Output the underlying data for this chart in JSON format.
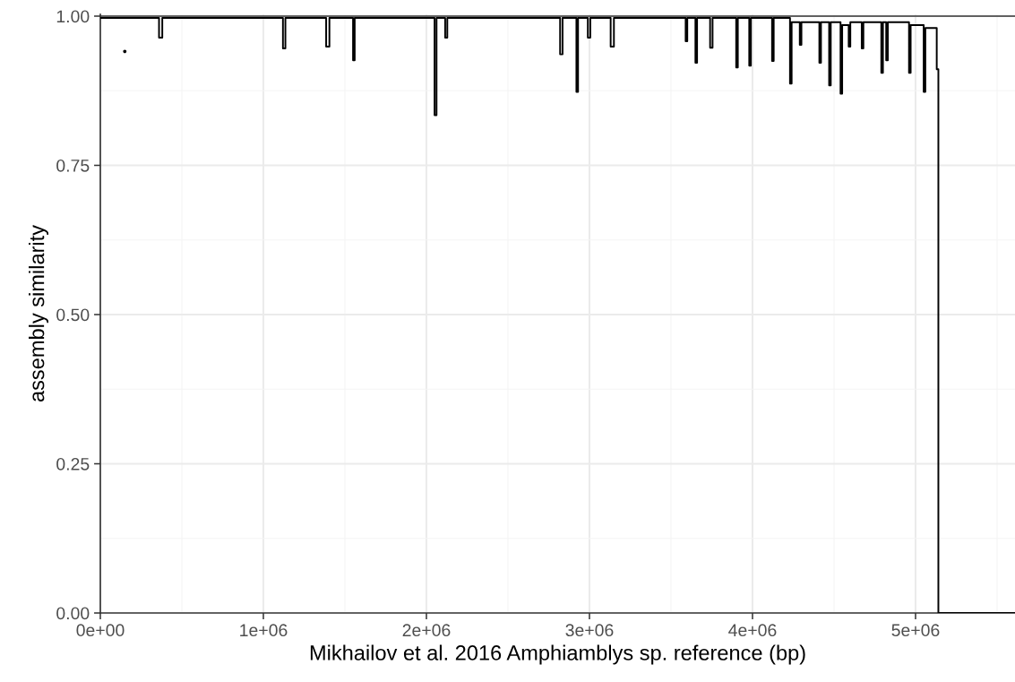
{
  "chart_data": {
    "type": "step",
    "xlabel": "Mikhailov et al. 2016 Amphiamblys sp. reference (bp)",
    "ylabel": "assembly similarity",
    "series": [
      {
        "color": "#000000",
        "x": [
          0,
          360000,
          380000,
          1120000,
          1135000,
          1385000,
          1405000,
          1550000,
          1560000,
          2050000,
          2062000,
          2115000,
          2128000,
          2820000,
          2835000,
          2920000,
          2930000,
          2990000,
          3005000,
          3130000,
          3150000,
          3590000,
          3600000,
          3650000,
          3660000,
          3740000,
          3755000,
          3900000,
          3910000,
          3980000,
          3990000,
          4120000,
          4130000,
          4230000,
          4240000,
          4290000,
          4300000,
          4410000,
          4420000,
          4470000,
          4480000,
          4540000,
          4550000,
          4590000,
          4600000,
          4670000,
          4680000,
          4790000,
          4800000,
          4820000,
          4830000,
          4960000,
          4970000,
          5050000,
          5060000,
          5130000,
          5140000,
          5610000
        ],
        "values": [
          0.997,
          0.964,
          0.997,
          0.946,
          0.997,
          0.949,
          0.997,
          0.926,
          0.997,
          0.834,
          0.997,
          0.964,
          0.997,
          0.936,
          0.997,
          0.873,
          0.997,
          0.964,
          0.997,
          0.949,
          0.997,
          0.958,
          0.997,
          0.922,
          0.997,
          0.947,
          0.997,
          0.914,
          0.997,
          0.917,
          0.997,
          0.925,
          0.997,
          0.887,
          0.99,
          0.952,
          0.99,
          0.922,
          0.99,
          0.884,
          0.99,
          0.87,
          0.985,
          0.949,
          0.99,
          0.946,
          0.99,
          0.905,
          0.99,
          0.926,
          0.99,
          0.905,
          0.985,
          0.873,
          0.98,
          0.911,
          0,
          0
        ]
      },
      {
        "type": "scatter",
        "color": "#000000",
        "x": [
          150000
        ],
        "values": [
          0.941
        ]
      }
    ],
    "ref_lines": [
      {
        "axis": "y",
        "value": 1,
        "color": "#333333"
      }
    ],
    "xlim": [
      0,
      5610000
    ],
    "ylim": [
      0,
      1.003
    ],
    "xticks": [
      {
        "value": 0,
        "label": "0e+00"
      },
      {
        "value": 1000000,
        "label": "1e+06"
      },
      {
        "value": 2000000,
        "label": "2e+06"
      },
      {
        "value": 3000000,
        "label": "3e+06"
      },
      {
        "value": 4000000,
        "label": "4e+06"
      },
      {
        "value": 5000000,
        "label": "5e+06"
      }
    ],
    "yticks": [
      {
        "value": 0,
        "label": "0.00"
      },
      {
        "value": 0.25,
        "label": "0.25"
      },
      {
        "value": 0.5,
        "label": "0.50"
      },
      {
        "value": 0.75,
        "label": "0.75"
      },
      {
        "value": 1,
        "label": "1.00"
      }
    ],
    "grid": true,
    "legend": false
  }
}
